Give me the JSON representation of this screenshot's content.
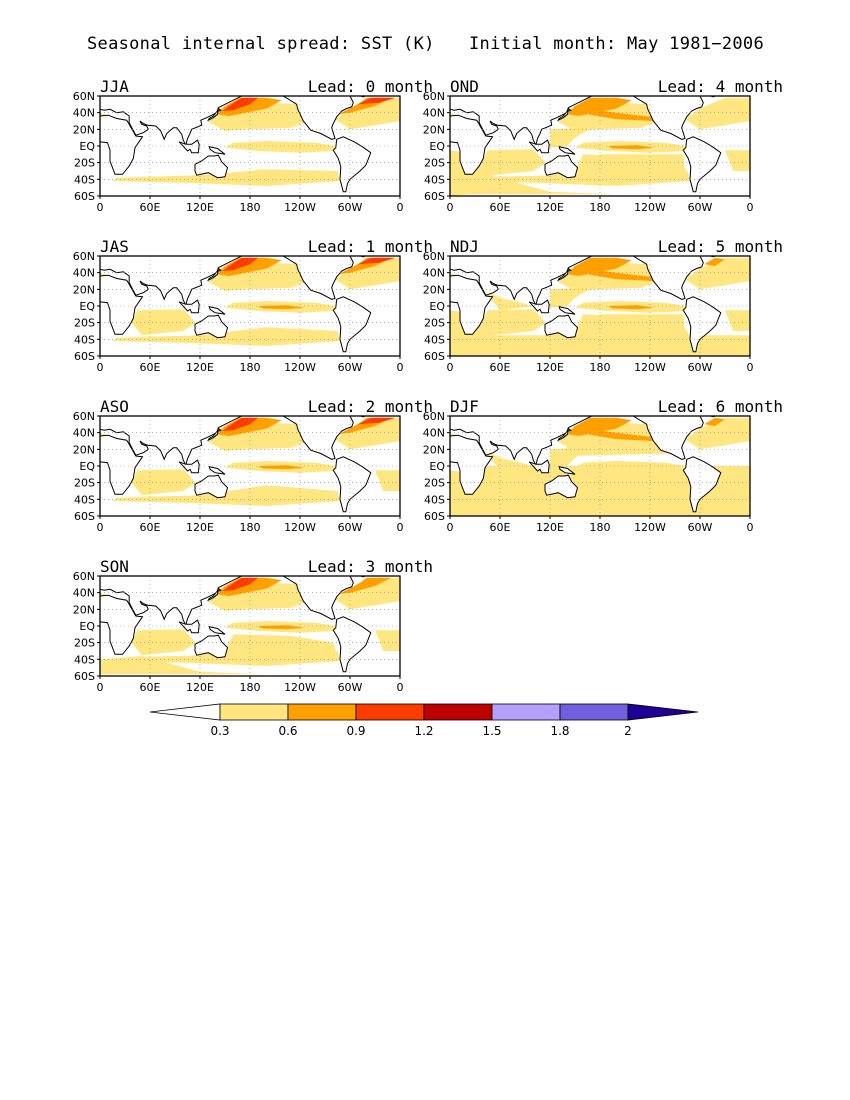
{
  "header": {
    "left": "Seasonal internal spread: SST (K)",
    "right": "Initial month: May 1981−2006"
  },
  "axes": {
    "lat_labels": [
      "60N",
      "40N",
      "20N",
      "EQ",
      "20S",
      "40S",
      "60S"
    ],
    "lon_labels": [
      "0",
      "60E",
      "120E",
      "180",
      "120W",
      "60W",
      "0"
    ]
  },
  "panels": [
    {
      "season": "JJA",
      "lead": "Lead: 0 month",
      "level": 0
    },
    {
      "season": "OND",
      "lead": "Lead: 4 month",
      "level": 4
    },
    {
      "season": "JAS",
      "lead": "Lead: 1 month",
      "level": 1
    },
    {
      "season": "NDJ",
      "lead": "Lead: 5 month",
      "level": 5
    },
    {
      "season": "ASO",
      "lead": "Lead: 2 month",
      "level": 2
    },
    {
      "season": "DJF",
      "lead": "Lead: 6 month",
      "level": 6
    },
    {
      "season": "SON",
      "lead": "Lead: 3 month",
      "level": 3
    }
  ],
  "colorbar": {
    "ticks": [
      "0.3",
      "0.6",
      "0.9",
      "1.2",
      "1.5",
      "1.8",
      "2"
    ],
    "colors": [
      "#ffffff",
      "#ffe680",
      "#ffa000",
      "#ff3c00",
      "#c00000",
      "#b4a0ff",
      "#7060e0",
      "#1e0096"
    ]
  }
}
